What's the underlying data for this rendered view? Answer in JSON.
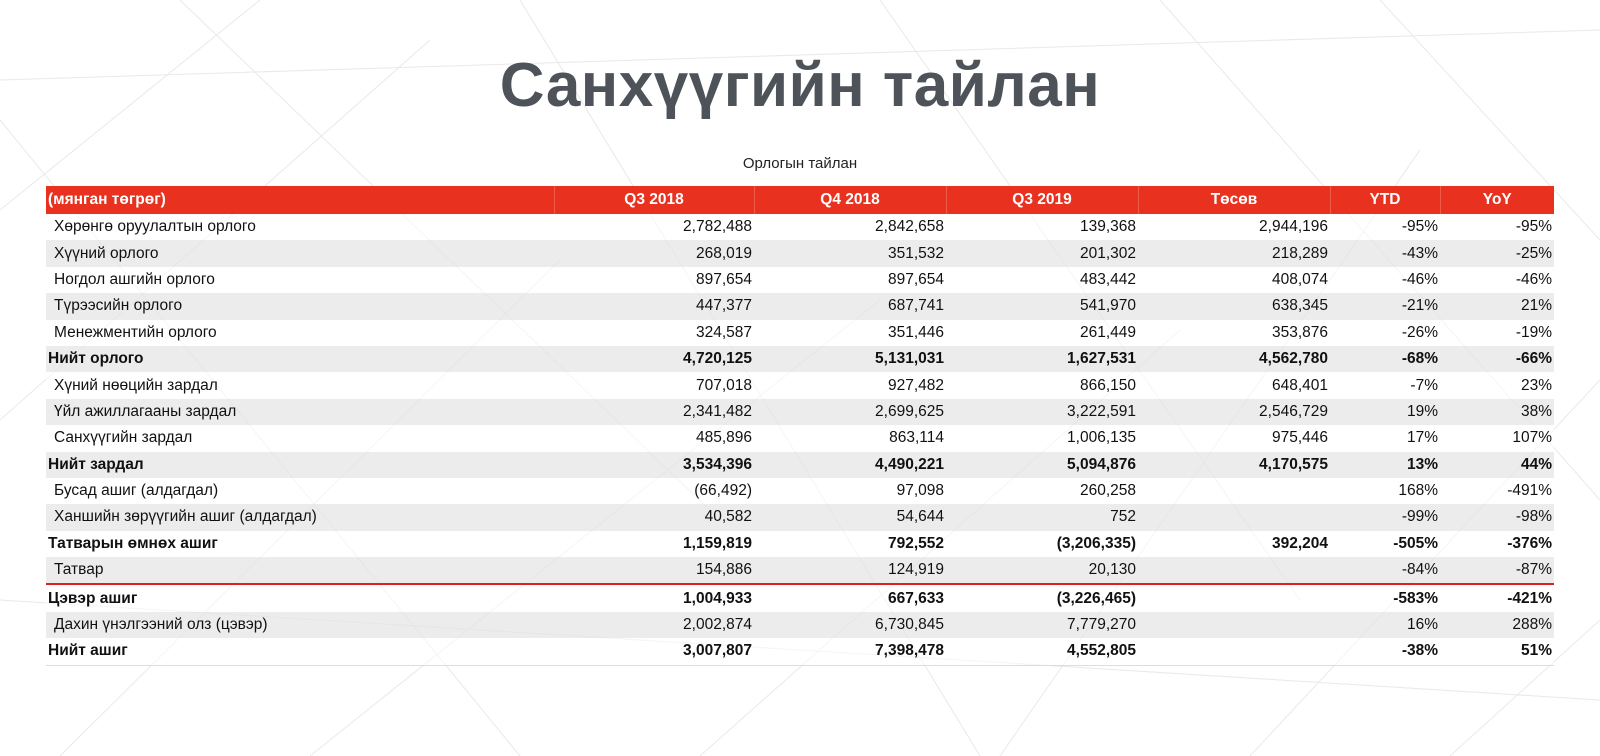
{
  "title": "Санхүүгийн тайлан",
  "table_caption": "Орлогын тайлан",
  "accent_color": "#e8321f",
  "table": {
    "headers": [
      "(мянган төгрөг)",
      "Q3 2018",
      "Q4 2018",
      "Q3 2019",
      "Төсөв",
      "YTD",
      "YoY"
    ],
    "rows": [
      {
        "label": "Хөрөнгө оруулалтын орлого",
        "values": [
          "2,782,488",
          "2,842,658",
          "139,368",
          "2,944,196",
          "-95%",
          "-95%"
        ],
        "bold": false
      },
      {
        "label": "Хүүний орлого",
        "values": [
          "268,019",
          "351,532",
          "201,302",
          "218,289",
          "-43%",
          "-25%"
        ],
        "bold": false
      },
      {
        "label": "Ногдол ашгийн орлого",
        "values": [
          "897,654",
          "897,654",
          "483,442",
          "408,074",
          "-46%",
          "-46%"
        ],
        "bold": false
      },
      {
        "label": "Түрээсийн орлого",
        "values": [
          "447,377",
          "687,741",
          "541,970",
          "638,345",
          "-21%",
          "21%"
        ],
        "bold": false
      },
      {
        "label": "Менежментийн орлого",
        "values": [
          "324,587",
          "351,446",
          "261,449",
          "353,876",
          "-26%",
          "-19%"
        ],
        "bold": false
      },
      {
        "label": "Нийт орлого",
        "values": [
          "4,720,125",
          "5,131,031",
          "1,627,531",
          "4,562,780",
          "-68%",
          "-66%"
        ],
        "bold": true
      },
      {
        "label": "Хүний нөөцийн зардал",
        "values": [
          "707,018",
          "927,482",
          "866,150",
          "648,401",
          "-7%",
          "23%"
        ],
        "bold": false
      },
      {
        "label": "Үйл ажиллагааны зардал",
        "values": [
          "2,341,482",
          "2,699,625",
          "3,222,591",
          "2,546,729",
          "19%",
          "38%"
        ],
        "bold": false
      },
      {
        "label": "Санхүүгийн зардал",
        "values": [
          "485,896",
          "863,114",
          "1,006,135",
          "975,446",
          "17%",
          "107%"
        ],
        "bold": false
      },
      {
        "label": "Нийт зардал",
        "values": [
          "3,534,396",
          "4,490,221",
          "5,094,876",
          "4,170,575",
          "13%",
          "44%"
        ],
        "bold": true
      },
      {
        "label": "Бусад ашиг (алдагдал)",
        "values": [
          "(66,492)",
          "97,098",
          "260,258",
          "",
          "168%",
          "-491%"
        ],
        "bold": false
      },
      {
        "label": "Ханшийн зөрүүгийн ашиг (алдагдал)",
        "values": [
          "40,582",
          "54,644",
          "752",
          "",
          "-99%",
          "-98%"
        ],
        "bold": false
      },
      {
        "label": "Татварын өмнөх ашиг",
        "values": [
          "1,159,819",
          "792,552",
          "(3,206,335)",
          "392,204",
          "-505%",
          "-376%"
        ],
        "bold": true
      },
      {
        "label": "Татвар",
        "values": [
          "154,886",
          "124,919",
          "20,130",
          "",
          "-84%",
          "-87%"
        ],
        "bold": false
      },
      {
        "label": "Цэвэр ашиг",
        "values": [
          "1,004,933",
          "667,633",
          "(3,226,465)",
          "",
          "-583%",
          "-421%"
        ],
        "bold": true
      },
      {
        "label": "Дахин үнэлгээний олз (цэвэр)",
        "values": [
          "2,002,874",
          "6,730,845",
          "7,779,270",
          "",
          "16%",
          "288%"
        ],
        "bold": false
      },
      {
        "label": "Нийт ашиг",
        "values": [
          "3,007,807",
          "7,398,478",
          "4,552,805",
          "",
          "-38%",
          "51%"
        ],
        "bold": true
      }
    ]
  }
}
